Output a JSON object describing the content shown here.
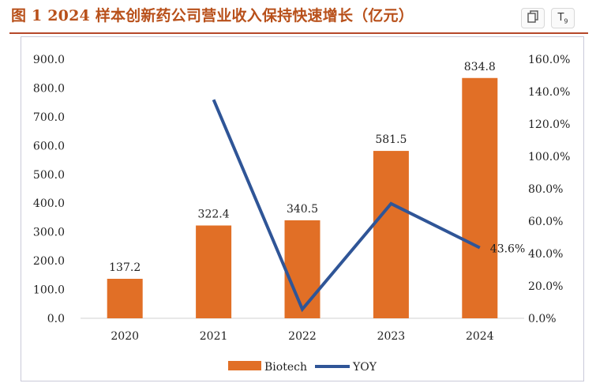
{
  "header": {
    "title": "图 1 2024 样本创新药公司营业收入保持快速增长（亿元）",
    "copy_icon": "copy-icon",
    "translate_icon": "translate-icon",
    "translate_glyph": "T",
    "translate_sub": "9"
  },
  "colors": {
    "title": "#b8501a",
    "bar": "#e16f26",
    "line": "#2f5597",
    "rule": "#b6482a"
  },
  "chart_data": {
    "type": "bar",
    "categories": [
      "2020",
      "2021",
      "2022",
      "2023",
      "2024"
    ],
    "series": [
      {
        "name": "Biotech",
        "type": "bar",
        "axis": "left",
        "values": [
          137.2,
          322.4,
          340.5,
          581.5,
          834.8
        ],
        "data_labels": [
          "137.2",
          "322.4",
          "340.5",
          "581.5",
          "834.8"
        ]
      },
      {
        "name": "YOY",
        "type": "line",
        "axis": "right",
        "values": [
          null,
          135.0,
          5.6,
          70.8,
          43.6
        ],
        "data_labels": [
          null,
          null,
          null,
          null,
          "43.6%"
        ]
      }
    ],
    "y_left": {
      "range": [
        0,
        900
      ],
      "ticks": [
        0,
        100,
        200,
        300,
        400,
        500,
        600,
        700,
        800,
        900
      ],
      "tick_labels": [
        "0.0",
        "100.0",
        "200.0",
        "300.0",
        "400.0",
        "500.0",
        "600.0",
        "700.0",
        "800.0",
        "900.0"
      ]
    },
    "y_right": {
      "range": [
        0,
        160
      ],
      "ticks": [
        0,
        20,
        40,
        60,
        80,
        100,
        120,
        140,
        160
      ],
      "tick_labels": [
        "0.0%",
        "20.0%",
        "40.0%",
        "60.0%",
        "80.0%",
        "100.0%",
        "120.0%",
        "140.0%",
        "160.0%"
      ]
    },
    "legend": {
      "position": "bottom",
      "entries": [
        "Biotech",
        "YOY"
      ]
    },
    "grid": false
  }
}
